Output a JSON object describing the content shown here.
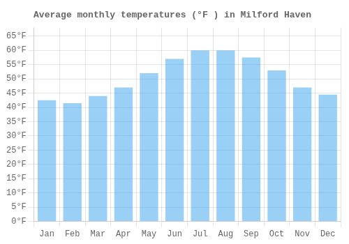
{
  "chart_data": {
    "type": "bar",
    "title": "Average monthly temperatures (°F ) in Milford Haven",
    "categories": [
      "Jan",
      "Feb",
      "Mar",
      "Apr",
      "May",
      "Jun",
      "Jul",
      "Aug",
      "Sep",
      "Oct",
      "Nov",
      "Dec"
    ],
    "values": [
      42.5,
      41.5,
      44,
      47,
      52,
      57,
      60,
      60,
      57.5,
      53,
      47,
      44.5
    ],
    "ylim": [
      0,
      68
    ],
    "yticks": [
      {
        "value": 0,
        "label": "0°F"
      },
      {
        "value": 5,
        "label": "5°F"
      },
      {
        "value": 10,
        "label": "10°F"
      },
      {
        "value": 15,
        "label": "15°F"
      },
      {
        "value": 20,
        "label": "20°F"
      },
      {
        "value": 25,
        "label": "25°F"
      },
      {
        "value": 30,
        "label": "30°F"
      },
      {
        "value": 35,
        "label": "35°F"
      },
      {
        "value": 40,
        "label": "40°F"
      },
      {
        "value": 45,
        "label": "45°F"
      },
      {
        "value": 50,
        "label": "50°F"
      },
      {
        "value": 55,
        "label": "55°F"
      },
      {
        "value": 60,
        "label": "60°F"
      },
      {
        "value": 65,
        "label": "65°F"
      }
    ],
    "grid": true
  }
}
